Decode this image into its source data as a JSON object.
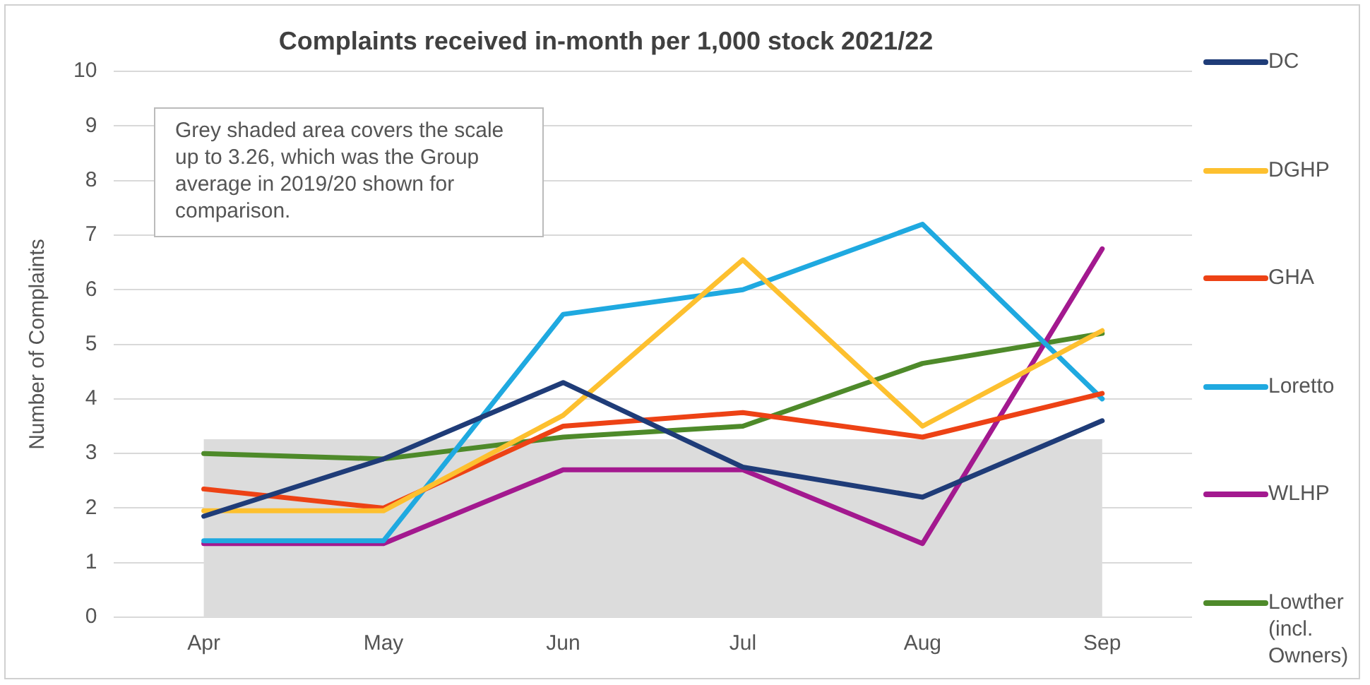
{
  "chart_data": {
    "type": "line",
    "title": "Complaints received in-month per 1,000 stock 2021/22",
    "ylabel": "Number of Complaints",
    "categories": [
      "Apr",
      "May",
      "Jun",
      "Jul",
      "Aug",
      "Sep"
    ],
    "series": [
      {
        "name": "DC",
        "color": "#1f3c78",
        "values": [
          1.85,
          2.9,
          4.3,
          2.75,
          2.2,
          3.6
        ]
      },
      {
        "name": "DGHP",
        "color": "#fdc02f",
        "values": [
          1.95,
          1.95,
          3.7,
          6.55,
          3.5,
          5.25
        ]
      },
      {
        "name": "GHA",
        "color": "#ed4215",
        "values": [
          2.35,
          2.0,
          3.5,
          3.75,
          3.3,
          4.1
        ]
      },
      {
        "name": "Loretto",
        "color": "#1fa9e0",
        "values": [
          1.4,
          1.4,
          5.55,
          6.0,
          7.2,
          4.0
        ]
      },
      {
        "name": "WLHP",
        "color": "#a3198f",
        "values": [
          1.35,
          1.35,
          2.7,
          2.7,
          1.35,
          6.75
        ]
      },
      {
        "name": "Lowther (incl. Owners)",
        "color": "#4e8a2a",
        "values": [
          3.0,
          2.9,
          3.3,
          3.5,
          4.65,
          5.2
        ]
      }
    ],
    "ylim": [
      0,
      10
    ],
    "yticks": [
      0,
      1,
      2,
      3,
      4,
      5,
      6,
      7,
      8,
      9,
      10
    ],
    "grid": "y",
    "legend": "right",
    "marker": "none",
    "line_style": "solid",
    "bands": [
      {
        "axis": "y",
        "from": 0,
        "to": 3.26,
        "color": "#dcdcdc"
      }
    ],
    "annotations": [
      "Grey shaded area covers the scale up to 3.26, which was the Group average in 2019/20 shown for comparison."
    ]
  }
}
